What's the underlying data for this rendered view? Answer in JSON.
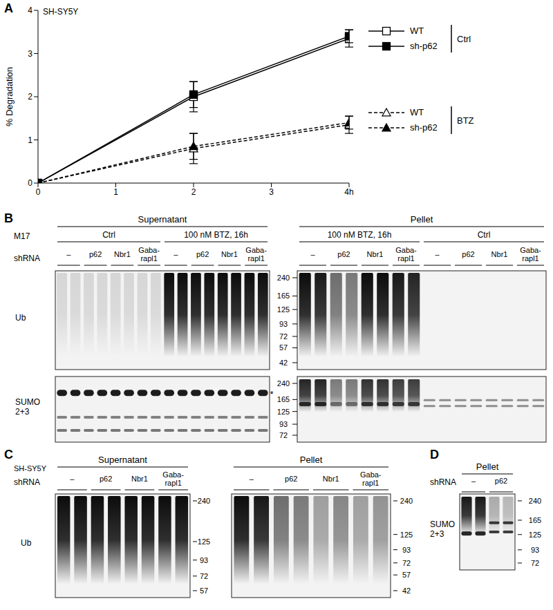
{
  "chart_data": {
    "type": "line",
    "panel": "A",
    "subtitle": "SH-SY5Y",
    "y_label": "% Degradation",
    "x": [
      0,
      2,
      4
    ],
    "xlim": [
      0,
      4
    ],
    "xticks": [
      0,
      1,
      2,
      3,
      {
        "value": 4,
        "label": "4h"
      }
    ],
    "ylim": [
      0,
      4
    ],
    "yticks": [
      0,
      1,
      2,
      3,
      4
    ],
    "grid": false,
    "legend": "right",
    "series": [
      {
        "name": "WT",
        "group": "Ctrl",
        "color": "#000000",
        "marker": "open_square",
        "line_style": "solid",
        "values": [
          0,
          2.0,
          3.35
        ],
        "errors": [
          0,
          0.35,
          0.2
        ]
      },
      {
        "name": "sh-p62",
        "group": "Ctrl",
        "color": "#000000",
        "marker": "filled_square",
        "line_style": "solid",
        "values": [
          0,
          2.05,
          3.4
        ],
        "errors": [
          0,
          0.3,
          0.15
        ]
      },
      {
        "name": "WT",
        "group": "BTZ",
        "color": "#000000",
        "marker": "open_triangle",
        "line_style": "dashed",
        "values": [
          0,
          0.8,
          1.35
        ],
        "errors": [
          0,
          0.35,
          0.2
        ]
      },
      {
        "name": "sh-p62",
        "group": "BTZ",
        "color": "#000000",
        "marker": "filled_triangle",
        "line_style": "dashed",
        "values": [
          0,
          0.85,
          1.4
        ],
        "errors": [
          0,
          0.3,
          0.15
        ]
      }
    ]
  },
  "blots": {
    "B": {
      "label": "B",
      "cell_line": "M17",
      "shrna_label": "shRNA",
      "shrna": [
        "–",
        "p62",
        "Nbr1",
        "Gaba-rapl1"
      ],
      "fractions": [
        {
          "name": "Supernatant",
          "conditions": [
            "Ctrl",
            "100 nM BTZ, 16h"
          ]
        },
        {
          "name": "Pellet",
          "conditions": [
            "100 nM BTZ, 16h",
            "Ctrl"
          ]
        }
      ],
      "rows": [
        {
          "antibody": "Ub",
          "markers": [
            240,
            165,
            125,
            93,
            72,
            57,
            42
          ]
        },
        {
          "antibody": "SUMO 2+3",
          "markers": [
            240,
            165,
            125,
            93,
            72
          ],
          "annotation": "*"
        }
      ]
    },
    "C": {
      "label": "C",
      "cell_line": "SH-SY5Y",
      "shrna_label": "shRNA",
      "shrna": [
        "–",
        "p62",
        "Nbr1",
        "Gaba-rapl1"
      ],
      "antibody": "Ub",
      "fractions": [
        {
          "name": "Supernatant",
          "markers": [
            240,
            125,
            93,
            72,
            57
          ]
        },
        {
          "name": "Pellet",
          "markers": [
            240,
            125,
            93,
            72,
            57,
            42
          ]
        }
      ]
    },
    "D": {
      "label": "D",
      "shrna_label": "shRNA",
      "shrna": [
        "–",
        "p62"
      ],
      "antibody": "SUMO 2+3",
      "fractions": [
        {
          "name": "Pellet",
          "markers": [
            240,
            165,
            125,
            93,
            72
          ]
        }
      ]
    }
  }
}
